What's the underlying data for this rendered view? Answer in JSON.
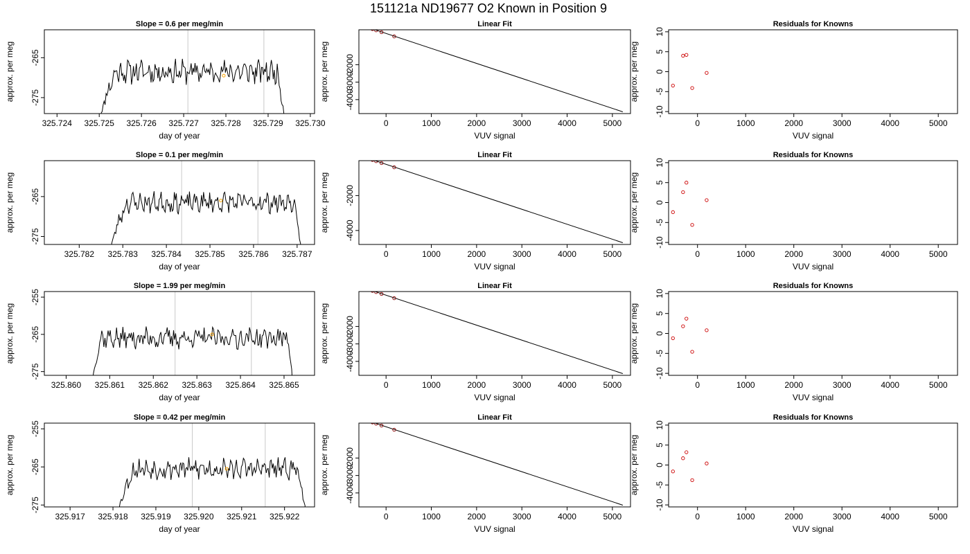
{
  "figure": {
    "title": "151121a     ND19677    O2 Known in Position  9"
  },
  "chart_data": [
    {
      "type": "line",
      "panel": "timeseries",
      "row": 0,
      "title": "Slope =  0.6  per meg/min",
      "xlabel": "day of year",
      "ylabel": "approx. per meg",
      "xlim": [
        325.7237,
        325.7301
      ],
      "ylim": [
        -279,
        -258
      ],
      "xticks": [
        325.724,
        325.725,
        325.726,
        325.727,
        325.728,
        325.729,
        325.73
      ],
      "xtick_labels": [
        "325.724",
        "325.725",
        "325.726",
        "325.727",
        "325.728",
        "325.729",
        "325.730"
      ],
      "yticks": [
        -265,
        -275
      ],
      "ytick_labels": [
        "-265",
        "-275"
      ],
      "vlines": [
        325.7271,
        325.7289
      ],
      "trace": {
        "x_start": 325.725,
        "x_end": 325.7294,
        "base": -268.5,
        "noise_amplitude": 2.3,
        "plateau_from": 325.7254,
        "plateau_to": 325.7292,
        "seed": 11
      },
      "marker": {
        "x": 325.72795,
        "y": -269.5,
        "color": "#ffa500"
      }
    },
    {
      "type": "line",
      "panel": "linearfit",
      "row": 0,
      "title": "Linear Fit",
      "xlabel": "VUV signal",
      "ylabel": "approx. per meg",
      "xlim": [
        -600,
        5400
      ],
      "ylim": [
        -4800,
        0
      ],
      "xticks": [
        0,
        1000,
        2000,
        3000,
        4000,
        5000
      ],
      "xtick_labels": [
        "0",
        "1000",
        "2000",
        "3000",
        "4000",
        "5000"
      ],
      "yticks": [
        -2000,
        -3000,
        -4000
      ],
      "ytick_labels": [
        "-2000",
        "-3000",
        "-4000"
      ],
      "fit_line": {
        "x": [
          -500,
          5230
        ],
        "y": [
          220,
          -4700
        ]
      },
      "points": {
        "x": [
          -500,
          -300,
          -220,
          -100,
          180
        ],
        "y": [
          220,
          40,
          -30,
          -140,
          -380
        ]
      },
      "highlight": {
        "x": -500,
        "y": 220,
        "color": "#ffa500"
      }
    },
    {
      "type": "scatter",
      "panel": "residuals",
      "row": 0,
      "title": "Residuals for Knowns",
      "xlabel": "VUV signal",
      "ylabel": "approx. per meg",
      "xlim": [
        -600,
        5400
      ],
      "ylim": [
        -10.5,
        10.5
      ],
      "xticks": [
        0,
        1000,
        2000,
        3000,
        4000,
        5000
      ],
      "xtick_labels": [
        "0",
        "1000",
        "2000",
        "3000",
        "4000",
        "5000"
      ],
      "yticks": [
        10,
        5,
        0,
        -5,
        -10
      ],
      "ytick_labels": [
        "10",
        "5",
        "0",
        "-5",
        "-10"
      ],
      "points": {
        "x": [
          -510,
          -300,
          -230,
          -110,
          190
        ],
        "y": [
          -3.5,
          4.0,
          4.2,
          -4.1,
          -0.3
        ]
      }
    },
    {
      "type": "line",
      "panel": "timeseries",
      "row": 1,
      "title": "Slope =  0.1  per meg/min",
      "xlabel": "day of year",
      "ylabel": "approx. per meg",
      "xlim": [
        325.7812,
        325.7874
      ],
      "ylim": [
        -277,
        -256
      ],
      "xticks": [
        325.782,
        325.783,
        325.784,
        325.785,
        325.786,
        325.787
      ],
      "xtick_labels": [
        "325.782",
        "325.783",
        "325.784",
        "325.785",
        "325.786",
        "325.787"
      ],
      "yticks": [
        -265,
        -275
      ],
      "ytick_labels": [
        "-265",
        "-275"
      ],
      "vlines": [
        325.78435,
        325.7861
      ],
      "trace": {
        "x_start": 325.7827,
        "x_end": 325.7871,
        "base": -266.5,
        "noise_amplitude": 2.0,
        "plateau_from": 325.7831,
        "plateau_to": 325.7869,
        "seed": 23
      },
      "marker": {
        "x": 325.78525,
        "y": -266.0,
        "color": "#ffa500"
      }
    },
    {
      "type": "line",
      "panel": "linearfit",
      "row": 1,
      "title": "Linear Fit",
      "xlabel": "VUV signal",
      "ylabel": "approx. per meg",
      "xlim": [
        -600,
        5400
      ],
      "ylim": [
        -4800,
        0
      ],
      "xticks": [
        0,
        1000,
        2000,
        3000,
        4000,
        5000
      ],
      "xtick_labels": [
        "0",
        "1000",
        "2000",
        "3000",
        "4000",
        "5000"
      ],
      "yticks": [
        -2000,
        -4000
      ],
      "ytick_labels": [
        "-2000",
        "-4000"
      ],
      "fit_line": {
        "x": [
          -500,
          5230
        ],
        "y": [
          220,
          -4700
        ]
      },
      "points": {
        "x": [
          -500,
          -300,
          -220,
          -100,
          180
        ],
        "y": [
          220,
          40,
          -30,
          -140,
          -380
        ]
      },
      "highlight": {
        "x": -500,
        "y": 220,
        "color": "#ffa500"
      }
    },
    {
      "type": "scatter",
      "panel": "residuals",
      "row": 1,
      "title": "Residuals for Knowns",
      "xlabel": "VUV signal",
      "ylabel": "approx. per meg",
      "xlim": [
        -600,
        5400
      ],
      "ylim": [
        -10.5,
        10.5
      ],
      "xticks": [
        0,
        1000,
        2000,
        3000,
        4000,
        5000
      ],
      "xtick_labels": [
        "0",
        "1000",
        "2000",
        "3000",
        "4000",
        "5000"
      ],
      "yticks": [
        10,
        5,
        0,
        -5,
        -10
      ],
      "ytick_labels": [
        "10",
        "5",
        "0",
        "-5",
        "-10"
      ],
      "points": {
        "x": [
          -510,
          -300,
          -230,
          -110,
          190
        ],
        "y": [
          -2.4,
          2.6,
          5.0,
          -5.6,
          0.6
        ]
      }
    },
    {
      "type": "line",
      "panel": "timeseries",
      "row": 2,
      "title": "Slope =  1.99  per meg/min",
      "xlabel": "day of year",
      "ylabel": "approx. per meg",
      "xlim": [
        325.8595,
        325.8657
      ],
      "ylim": [
        -276,
        -253.5
      ],
      "xticks": [
        325.86,
        325.861,
        325.862,
        325.863,
        325.864,
        325.865
      ],
      "xtick_labels": [
        "325.860",
        "325.861",
        "325.862",
        "325.863",
        "325.864",
        "325.865"
      ],
      "yticks": [
        -255,
        -265,
        -275
      ],
      "ytick_labels": [
        "-255",
        "-265",
        "-275"
      ],
      "vlines": [
        325.8625,
        325.86425
      ],
      "trace": {
        "x_start": 325.8606,
        "x_end": 325.8652,
        "base": -266.0,
        "noise_amplitude": 2.2,
        "plateau_from": 325.8608,
        "plateau_to": 325.8651,
        "seed": 37
      },
      "marker": {
        "x": 325.86335,
        "y": -265.0,
        "color": "#ffa500"
      }
    },
    {
      "type": "line",
      "panel": "linearfit",
      "row": 2,
      "title": "Linear Fit",
      "xlabel": "VUV signal",
      "ylabel": "approx. per meg",
      "xlim": [
        -600,
        5400
      ],
      "ylim": [
        -4800,
        0
      ],
      "xticks": [
        0,
        1000,
        2000,
        3000,
        4000,
        5000
      ],
      "xtick_labels": [
        "0",
        "1000",
        "2000",
        "3000",
        "4000",
        "5000"
      ],
      "yticks": [
        -2000,
        -3000,
        -4000
      ],
      "ytick_labels": [
        "-2000",
        "-3000",
        "-4000"
      ],
      "fit_line": {
        "x": [
          -500,
          5230
        ],
        "y": [
          220,
          -4700
        ]
      },
      "points": {
        "x": [
          -500,
          -300,
          -220,
          -100,
          180
        ],
        "y": [
          220,
          40,
          -30,
          -140,
          -380
        ]
      },
      "highlight": {
        "x": -500,
        "y": 220,
        "color": "#ffa500"
      }
    },
    {
      "type": "scatter",
      "panel": "residuals",
      "row": 2,
      "title": "Residuals for Knowns",
      "xlabel": "VUV signal",
      "ylabel": "approx. per meg",
      "xlim": [
        -600,
        5400
      ],
      "ylim": [
        -10.5,
        10.5
      ],
      "xticks": [
        0,
        1000,
        2000,
        3000,
        4000,
        5000
      ],
      "xtick_labels": [
        "0",
        "1000",
        "2000",
        "3000",
        "4000",
        "5000"
      ],
      "yticks": [
        10,
        5,
        0,
        -5,
        -10
      ],
      "ytick_labels": [
        "10",
        "5",
        "0",
        "-5",
        "-10"
      ],
      "points": {
        "x": [
          -510,
          -300,
          -230,
          -110,
          190
        ],
        "y": [
          -1.2,
          1.8,
          3.7,
          -4.6,
          0.8
        ]
      }
    },
    {
      "type": "line",
      "panel": "timeseries",
      "row": 3,
      "title": "Slope =  0.42  per meg/min",
      "xlabel": "day of year",
      "ylabel": "approx. per meg",
      "xlim": [
        325.9164,
        325.9227
      ],
      "ylim": [
        -275.5,
        -253.5
      ],
      "xticks": [
        325.917,
        325.918,
        325.919,
        325.92,
        325.921,
        325.922
      ],
      "xtick_labels": [
        "325.917",
        "325.918",
        "325.919",
        "325.920",
        "325.921",
        "325.922"
      ],
      "yticks": [
        -255,
        -265,
        -275
      ],
      "ytick_labels": [
        "-255",
        "-265",
        "-275"
      ],
      "vlines": [
        325.91985,
        325.92155
      ],
      "trace": {
        "x_start": 325.9181,
        "x_end": 325.9225,
        "base": -265.5,
        "noise_amplitude": 2.1,
        "plateau_from": 325.9185,
        "plateau_to": 325.9223,
        "seed": 53
      },
      "marker": {
        "x": 325.92065,
        "y": -265.5,
        "color": "#ffa500"
      }
    },
    {
      "type": "line",
      "panel": "linearfit",
      "row": 3,
      "title": "Linear Fit",
      "xlabel": "VUV signal",
      "ylabel": "approx. per meg",
      "xlim": [
        -600,
        5400
      ],
      "ylim": [
        -4800,
        0
      ],
      "xticks": [
        0,
        1000,
        2000,
        3000,
        4000,
        5000
      ],
      "xtick_labels": [
        "0",
        "1000",
        "2000",
        "3000",
        "4000",
        "5000"
      ],
      "yticks": [
        -2000,
        -3000,
        -4000
      ],
      "ytick_labels": [
        "-2000",
        "-3000",
        "-4000"
      ],
      "fit_line": {
        "x": [
          -500,
          5230
        ],
        "y": [
          220,
          -4700
        ]
      },
      "points": {
        "x": [
          -500,
          -300,
          -220,
          -100,
          180
        ],
        "y": [
          220,
          40,
          -30,
          -140,
          -380
        ]
      },
      "highlight": {
        "x": -500,
        "y": 220,
        "color": "#ffa500"
      }
    },
    {
      "type": "scatter",
      "panel": "residuals",
      "row": 3,
      "title": "Residuals for Knowns",
      "xlabel": "VUV signal",
      "ylabel": "approx. per meg",
      "xlim": [
        -600,
        5400
      ],
      "ylim": [
        -10.5,
        10.5
      ],
      "xticks": [
        0,
        1000,
        2000,
        3000,
        4000,
        5000
      ],
      "xtick_labels": [
        "0",
        "1000",
        "2000",
        "3000",
        "4000",
        "5000"
      ],
      "yticks": [
        10,
        5,
        0,
        -5,
        -10
      ],
      "ytick_labels": [
        "10",
        "5",
        "0",
        "-5",
        "-10"
      ],
      "points": {
        "x": [
          -510,
          -300,
          -230,
          -110,
          190
        ],
        "y": [
          -1.6,
          1.7,
          3.2,
          -3.8,
          0.4
        ]
      }
    }
  ]
}
